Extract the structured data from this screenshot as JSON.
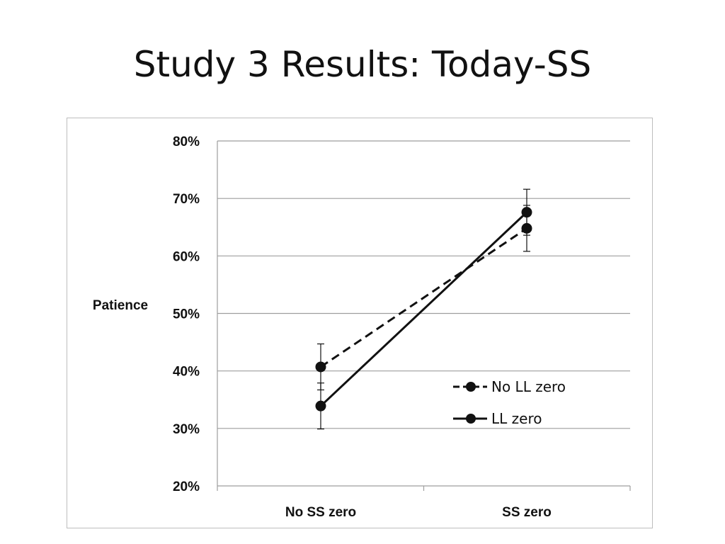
{
  "slide": {
    "title": "Study 3 Results: Today-SS"
  },
  "chart_data": {
    "type": "line",
    "title": "",
    "xlabel": "",
    "ylabel": "Patience",
    "ylim": [
      0.2,
      0.8
    ],
    "yticks": [
      "20%",
      "30%",
      "40%",
      "50%",
      "60%",
      "70%",
      "80%"
    ],
    "categories": [
      "No SS zero",
      "SS zero"
    ],
    "grid": true,
    "legend_position": "bottom-right",
    "series": [
      {
        "name": "No LL zero",
        "style": "dashed",
        "values": [
          0.407,
          0.648
        ],
        "error": [
          0.04,
          0.04
        ]
      },
      {
        "name": "LL zero",
        "style": "solid",
        "values": [
          0.339,
          0.676
        ],
        "error": [
          0.04,
          0.04
        ]
      }
    ],
    "colors": {
      "line": "#111111",
      "grid": "#9e9e9e"
    }
  }
}
